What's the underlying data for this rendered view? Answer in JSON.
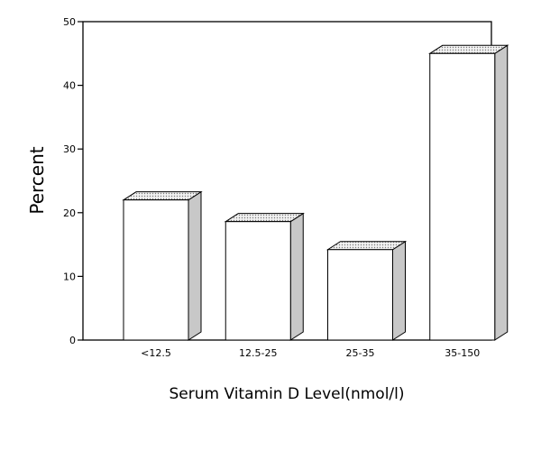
{
  "chart_data": {
    "type": "bar",
    "style": "3d-bar",
    "categories": [
      "<12.5",
      "12.5-25",
      "25-35",
      "35-150"
    ],
    "values": [
      22,
      18.6,
      14.2,
      45
    ],
    "title": "",
    "xlabel": "Serum Vitamin D Level(nmol/l)",
    "ylabel": "Percent",
    "ylim": [
      0,
      50
    ],
    "yticks": [
      "0",
      "10",
      "20",
      "30",
      "40",
      "50"
    ],
    "grid": false,
    "legend": "none",
    "colors": {
      "bar_front": "#ffffff",
      "bar_side": "#c8c8c8",
      "bar_top": "#d9d9d9",
      "axis": "#000000"
    }
  }
}
